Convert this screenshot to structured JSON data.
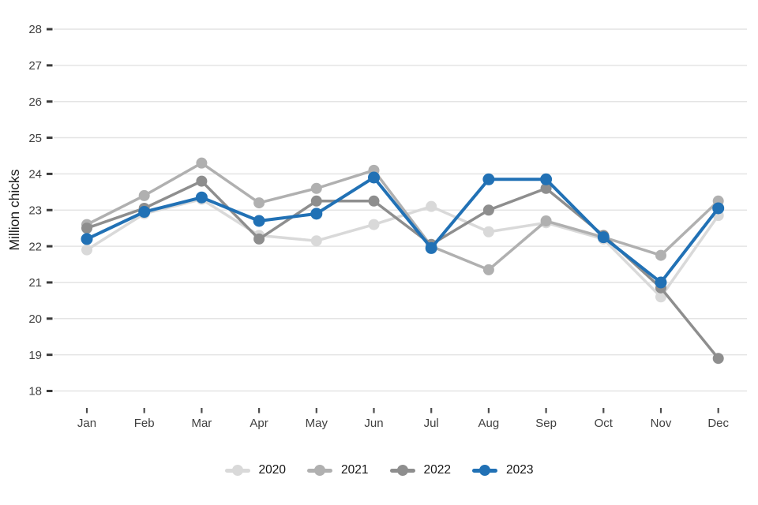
{
  "chart_data": {
    "type": "line",
    "title": "",
    "xlabel": "",
    "ylabel": "Million chicks",
    "ylim": [
      18,
      28
    ],
    "yticks": [
      18,
      19,
      20,
      21,
      22,
      23,
      24,
      25,
      26,
      27,
      28
    ],
    "grid": "horizontal",
    "gridline_color": "#e4e4e4",
    "tick_color": "#3a3a3a",
    "legend_position": "bottom",
    "categories": [
      "Jan",
      "Feb",
      "Mar",
      "Apr",
      "May",
      "Jun",
      "Jul",
      "Aug",
      "Sep",
      "Oct",
      "Nov",
      "Dec"
    ],
    "series": [
      {
        "name": "2020",
        "color": "#d9d9d9",
        "values": [
          21.9,
          22.9,
          23.3,
          22.3,
          22.15,
          22.6,
          23.1,
          22.4,
          22.65,
          22.2,
          20.6,
          22.85
        ]
      },
      {
        "name": "2021",
        "color": "#b0b0b0",
        "values": [
          22.6,
          23.4,
          24.3,
          23.2,
          23.6,
          24.1,
          22.0,
          21.35,
          22.7,
          22.25,
          21.75,
          23.25
        ]
      },
      {
        "name": "2022",
        "color": "#8e8e8e",
        "values": [
          22.5,
          23.05,
          23.8,
          22.2,
          23.25,
          23.25,
          22.05,
          23.0,
          23.6,
          22.3,
          20.85,
          18.9
        ]
      },
      {
        "name": "2023",
        "color": "#2171b5",
        "values": [
          22.2,
          22.95,
          23.35,
          22.7,
          22.9,
          23.9,
          21.95,
          23.85,
          23.85,
          22.25,
          21.0,
          23.05
        ]
      }
    ]
  }
}
